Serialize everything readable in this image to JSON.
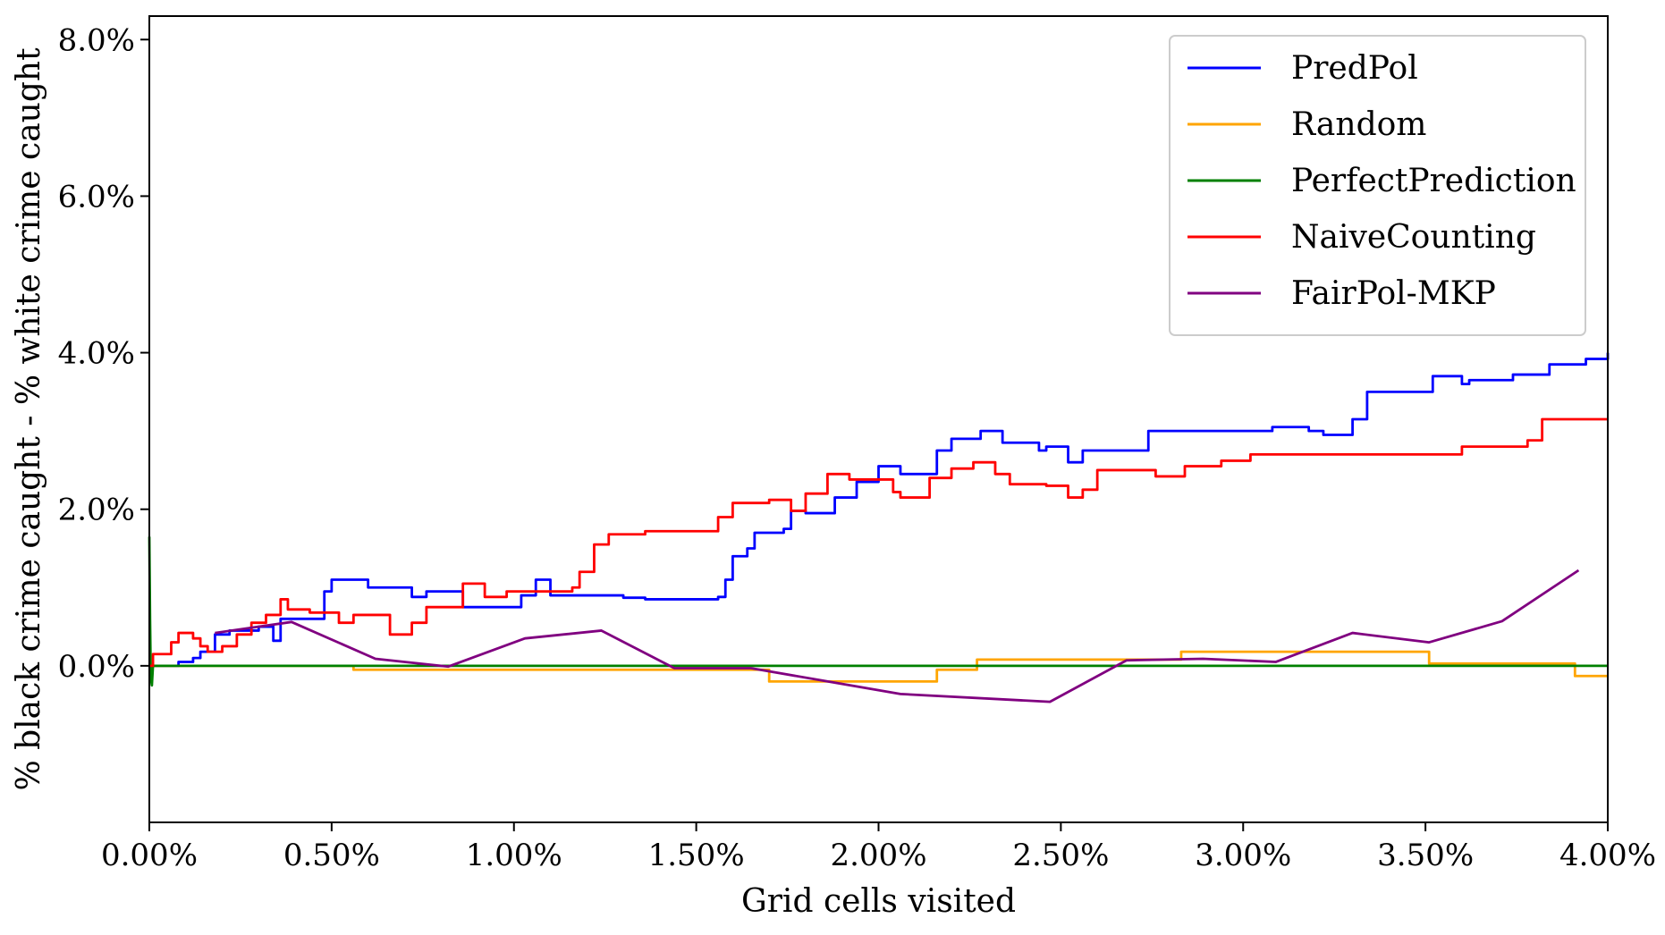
{
  "chart_data": {
    "type": "line",
    "title": "",
    "xlabel": "Grid cells visited",
    "ylabel": "% black crime caught - % white crime caught",
    "xlim": [
      0,
      4.0
    ],
    "ylim": [
      -2.0,
      8.3
    ],
    "x_unit": "%",
    "y_unit": "%",
    "xticks": [
      0,
      0.5,
      1.0,
      1.5,
      2.0,
      2.5,
      3.0,
      3.5,
      4.0
    ],
    "xtick_labels": [
      "0.00%",
      "0.50%",
      "1.00%",
      "1.50%",
      "2.00%",
      "2.50%",
      "3.00%",
      "3.50%",
      "4.00%"
    ],
    "yticks": [
      0,
      2,
      4,
      6,
      8
    ],
    "ytick_labels": [
      "0.0%",
      "2.0%",
      "4.0%",
      "6.0%",
      "8.0%"
    ],
    "grid": false,
    "legend_position": "top-right",
    "series": [
      {
        "name": "PredPol",
        "color": "#0000ff",
        "step": true,
        "points": [
          [
            0,
            0
          ],
          [
            0.08,
            0.05
          ],
          [
            0.12,
            0.1
          ],
          [
            0.14,
            0.18
          ],
          [
            0.18,
            0.4
          ],
          [
            0.22,
            0.45
          ],
          [
            0.3,
            0.5
          ],
          [
            0.34,
            0.32
          ],
          [
            0.36,
            0.6
          ],
          [
            0.48,
            0.95
          ],
          [
            0.5,
            1.1
          ],
          [
            0.6,
            1.0
          ],
          [
            0.72,
            0.88
          ],
          [
            0.76,
            0.95
          ],
          [
            0.86,
            0.75
          ],
          [
            1.02,
            0.9
          ],
          [
            1.06,
            1.1
          ],
          [
            1.1,
            0.9
          ],
          [
            1.3,
            0.87
          ],
          [
            1.36,
            0.85
          ],
          [
            1.56,
            0.88
          ],
          [
            1.58,
            1.1
          ],
          [
            1.6,
            1.4
          ],
          [
            1.64,
            1.5
          ],
          [
            1.66,
            1.7
          ],
          [
            1.74,
            1.75
          ],
          [
            1.76,
            1.98
          ],
          [
            1.8,
            1.95
          ],
          [
            1.88,
            2.15
          ],
          [
            1.94,
            2.35
          ],
          [
            2.0,
            2.55
          ],
          [
            2.06,
            2.45
          ],
          [
            2.16,
            2.75
          ],
          [
            2.2,
            2.9
          ],
          [
            2.28,
            3.0
          ],
          [
            2.34,
            2.85
          ],
          [
            2.44,
            2.75
          ],
          [
            2.46,
            2.8
          ],
          [
            2.52,
            2.6
          ],
          [
            2.56,
            2.75
          ],
          [
            2.74,
            3.0
          ],
          [
            2.9,
            3.0
          ],
          [
            3.08,
            3.05
          ],
          [
            3.18,
            3.0
          ],
          [
            3.22,
            2.95
          ],
          [
            3.3,
            3.15
          ],
          [
            3.34,
            3.5
          ],
          [
            3.52,
            3.7
          ],
          [
            3.6,
            3.6
          ],
          [
            3.62,
            3.65
          ],
          [
            3.74,
            3.72
          ],
          [
            3.84,
            3.85
          ],
          [
            3.94,
            3.92
          ],
          [
            4.0,
            4.0
          ]
        ]
      },
      {
        "name": "Random",
        "color": "#ffa500",
        "step": true,
        "points": [
          [
            0,
            0
          ],
          [
            0.55,
            0
          ],
          [
            0.56,
            -0.05
          ],
          [
            1.68,
            -0.05
          ],
          [
            1.7,
            -0.2
          ],
          [
            2.15,
            -0.2
          ],
          [
            2.16,
            -0.05
          ],
          [
            2.26,
            -0.05
          ],
          [
            2.27,
            0.08
          ],
          [
            2.82,
            0.08
          ],
          [
            2.83,
            0.18
          ],
          [
            3.5,
            0.18
          ],
          [
            3.51,
            0.03
          ],
          [
            3.9,
            0.03
          ],
          [
            3.91,
            -0.13
          ],
          [
            4.0,
            -0.13
          ]
        ]
      },
      {
        "name": "PerfectPrediction",
        "color": "#008000",
        "step": false,
        "points": [
          [
            0,
            1.65
          ],
          [
            0.002,
            0.6
          ],
          [
            0.004,
            -0.15
          ],
          [
            0.007,
            -0.25
          ],
          [
            0.01,
            0
          ],
          [
            4.0,
            0
          ]
        ]
      },
      {
        "name": "NaiveCounting",
        "color": "#ff0000",
        "step": true,
        "points": [
          [
            0,
            0
          ],
          [
            0.01,
            0.15
          ],
          [
            0.06,
            0.3
          ],
          [
            0.08,
            0.42
          ],
          [
            0.12,
            0.35
          ],
          [
            0.14,
            0.25
          ],
          [
            0.16,
            0.18
          ],
          [
            0.2,
            0.25
          ],
          [
            0.24,
            0.4
          ],
          [
            0.28,
            0.55
          ],
          [
            0.32,
            0.65
          ],
          [
            0.36,
            0.85
          ],
          [
            0.38,
            0.72
          ],
          [
            0.44,
            0.68
          ],
          [
            0.52,
            0.55
          ],
          [
            0.56,
            0.65
          ],
          [
            0.66,
            0.4
          ],
          [
            0.72,
            0.55
          ],
          [
            0.76,
            0.75
          ],
          [
            0.86,
            1.05
          ],
          [
            0.92,
            0.88
          ],
          [
            0.98,
            0.95
          ],
          [
            1.1,
            0.95
          ],
          [
            1.16,
            1.0
          ],
          [
            1.18,
            1.2
          ],
          [
            1.22,
            1.55
          ],
          [
            1.26,
            1.68
          ],
          [
            1.36,
            1.72
          ],
          [
            1.46,
            1.72
          ],
          [
            1.56,
            1.9
          ],
          [
            1.6,
            2.08
          ],
          [
            1.7,
            2.12
          ],
          [
            1.76,
            1.98
          ],
          [
            1.8,
            2.2
          ],
          [
            1.86,
            2.45
          ],
          [
            1.92,
            2.38
          ],
          [
            2.04,
            2.22
          ],
          [
            2.06,
            2.15
          ],
          [
            2.14,
            2.4
          ],
          [
            2.2,
            2.52
          ],
          [
            2.26,
            2.6
          ],
          [
            2.32,
            2.45
          ],
          [
            2.36,
            2.32
          ],
          [
            2.46,
            2.3
          ],
          [
            2.52,
            2.15
          ],
          [
            2.56,
            2.25
          ],
          [
            2.6,
            2.5
          ],
          [
            2.76,
            2.42
          ],
          [
            2.84,
            2.55
          ],
          [
            2.94,
            2.62
          ],
          [
            3.02,
            2.7
          ],
          [
            3.2,
            2.7
          ],
          [
            3.6,
            2.8
          ],
          [
            3.78,
            2.88
          ],
          [
            3.82,
            3.15
          ],
          [
            4.0,
            3.15
          ]
        ]
      },
      {
        "name": "FairPol-MKP",
        "color": "#800080",
        "step": false,
        "points": [
          [
            0.18,
            0.42
          ],
          [
            0.39,
            0.56
          ],
          [
            0.62,
            0.09
          ],
          [
            0.82,
            -0.01
          ],
          [
            1.03,
            0.35
          ],
          [
            1.24,
            0.45
          ],
          [
            1.44,
            -0.03
          ],
          [
            1.65,
            -0.03
          ],
          [
            2.06,
            -0.36
          ],
          [
            2.47,
            -0.46
          ],
          [
            2.68,
            0.07
          ],
          [
            2.89,
            0.09
          ],
          [
            3.09,
            0.05
          ],
          [
            3.3,
            0.42
          ],
          [
            3.51,
            0.3
          ],
          [
            3.71,
            0.57
          ],
          [
            3.92,
            1.22
          ]
        ]
      }
    ]
  }
}
